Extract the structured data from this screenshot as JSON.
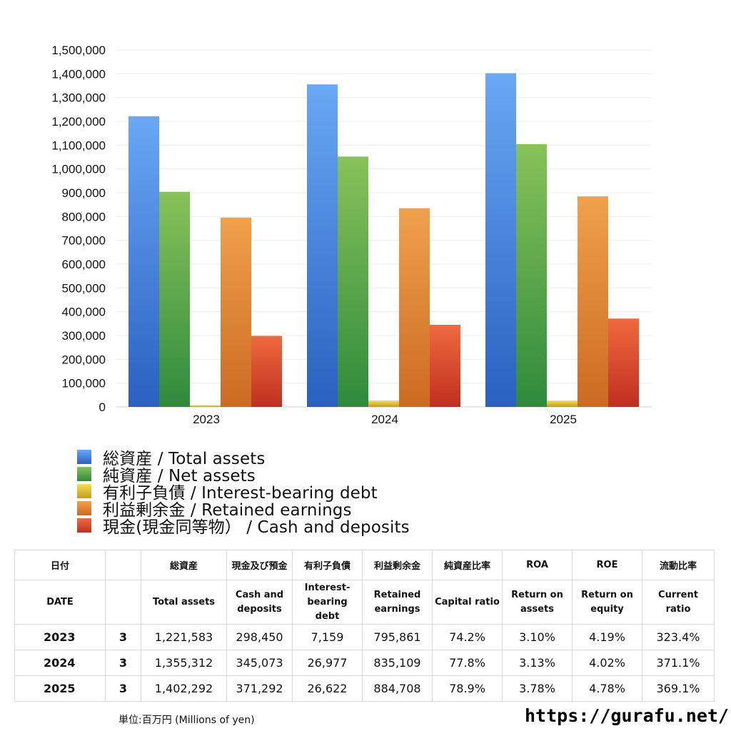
{
  "chart_data": {
    "type": "bar",
    "categories": [
      "2023",
      "2024",
      "2025"
    ],
    "ylim": [
      0,
      1500000
    ],
    "yticks": [
      "0",
      "100,000",
      "200,000",
      "300,000",
      "400,000",
      "500,000",
      "600,000",
      "700,000",
      "800,000",
      "900,000",
      "1,000,000",
      "1,100,000",
      "1,200,000",
      "1,300,000",
      "1,400,000",
      "1,500,000"
    ],
    "grid": true,
    "legend_placement": "bottom",
    "series": [
      {
        "name": "総資産 / Total assets",
        "values": [
          1221583,
          1355312,
          1402292
        ],
        "color_top": "#68a8f5",
        "color_bottom": "#2a60c0"
      },
      {
        "name": "純資産 / Net assets",
        "values": [
          904000,
          1052000,
          1104000
        ],
        "color_top": "#88c25a",
        "color_bottom": "#2f8a3c"
      },
      {
        "name": "有利子負債 / Interest-bearing debt",
        "values": [
          7159,
          26977,
          26622
        ],
        "color_top": "#f2df58",
        "color_bottom": "#c79a1c"
      },
      {
        "name": "利益剰余金 / Retained earnings",
        "values": [
          795861,
          835109,
          884708
        ],
        "color_top": "#f0a14c",
        "color_bottom": "#cc6a22"
      },
      {
        "name": "現金(現金同等物） /  Cash and deposits",
        "values": [
          298450,
          345073,
          371292
        ],
        "color_top": "#ef6a3f",
        "color_bottom": "#bf2f1f"
      }
    ]
  },
  "table": {
    "headers_ja": [
      "日付",
      "総資産",
      "現金及び預金",
      "有利子負債",
      "利益剰余金",
      "純資産比率",
      "ROA",
      "ROE",
      "流動比率"
    ],
    "headers_en": [
      "DATE",
      "Total assets",
      "Cash and deposits",
      "Interest-bearing debt",
      "Retained earnings",
      "Capital ratio",
      "Return on assets",
      "Return on equity",
      "Current ratio"
    ],
    "rows": [
      {
        "year": "2023",
        "month": "3",
        "total_assets": "1,221,583",
        "cash": "298,450",
        "debt": "7,159",
        "retained": "795,861",
        "capital_ratio": "74.2%",
        "roa": "3.10%",
        "roe": "4.19%",
        "current_ratio": "323.4%"
      },
      {
        "year": "2024",
        "month": "3",
        "total_assets": "1,355,312",
        "cash": "345,073",
        "debt": "26,977",
        "retained": "835,109",
        "capital_ratio": "77.8%",
        "roa": "3.13%",
        "roe": "4.02%",
        "current_ratio": "371.1%"
      },
      {
        "year": "2025",
        "month": "3",
        "total_assets": "1,402,292",
        "cash": "371,292",
        "debt": "26,622",
        "retained": "884,708",
        "capital_ratio": "78.9%",
        "roa": "3.78%",
        "roe": "4.78%",
        "current_ratio": "369.1%"
      }
    ]
  },
  "footer": {
    "unit": "単位:百万円 (Millions of yen)",
    "site": "https://gurafu.net/"
  }
}
